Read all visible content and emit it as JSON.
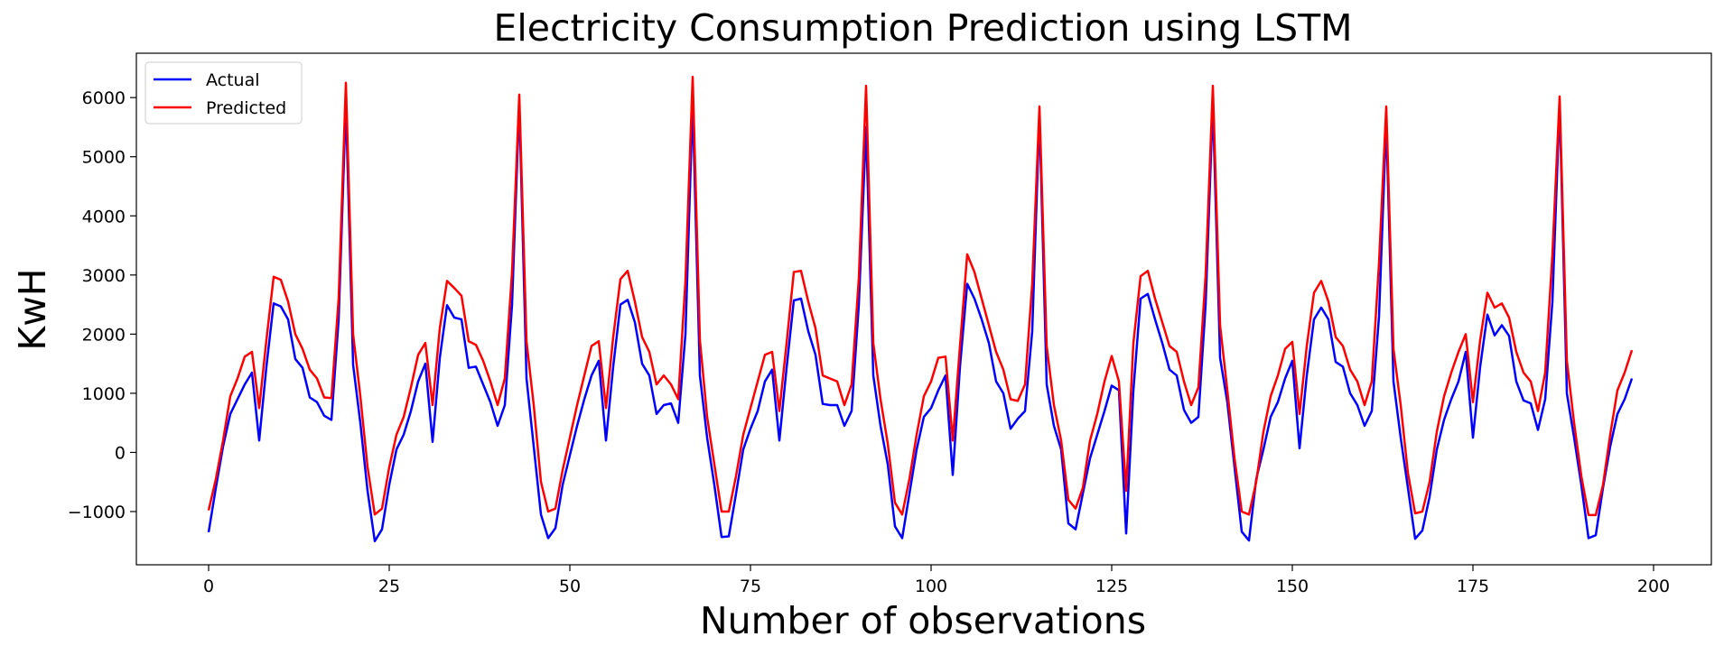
{
  "chart_data": {
    "type": "line",
    "title": "Electricity Consumption Prediction using LSTM",
    "xlabel": "Number of observations",
    "ylabel": "KwH",
    "xlim": [
      -10,
      208
    ],
    "ylim": [
      -1900,
      6750
    ],
    "xticks": [
      0,
      25,
      50,
      75,
      100,
      125,
      150,
      175,
      200
    ],
    "xtick_labels": [
      "0",
      "25",
      "50",
      "75",
      "100",
      "125",
      "150",
      "175",
      "200"
    ],
    "yticks": [
      -1000,
      0,
      1000,
      2000,
      3000,
      4000,
      5000,
      6000
    ],
    "ytick_labels": [
      "−1000",
      "0",
      "1000",
      "2000",
      "3000",
      "4000",
      "5000",
      "6000"
    ],
    "legend_position": "top-left",
    "grid": false,
    "series": [
      {
        "name": "Actual",
        "color": "#0000ff",
        "values": [
          -1350,
          -600,
          100,
          650,
          900,
          1150,
          1350,
          200,
          1450,
          2520,
          2470,
          2250,
          1580,
          1430,
          930,
          850,
          620,
          550,
          2250,
          5900,
          1480,
          500,
          -650,
          -1500,
          -1300,
          -550,
          50,
          300,
          700,
          1200,
          1500,
          180,
          1600,
          2490,
          2280,
          2250,
          1430,
          1450,
          1150,
          850,
          450,
          800,
          2500,
          5900,
          1250,
          100,
          -1050,
          -1450,
          -1280,
          -550,
          -50,
          450,
          900,
          1300,
          1550,
          200,
          1450,
          2500,
          2580,
          2200,
          1500,
          1300,
          650,
          800,
          830,
          500,
          2000,
          5900,
          1300,
          250,
          -550,
          -1430,
          -1420,
          -700,
          50,
          400,
          700,
          1200,
          1400,
          200,
          1430,
          2570,
          2600,
          2050,
          1650,
          820,
          800,
          800,
          450,
          700,
          2500,
          5500,
          1300,
          450,
          -200,
          -1250,
          -1450,
          -700,
          50,
          600,
          750,
          1050,
          1300,
          -380,
          1450,
          2850,
          2600,
          2250,
          1850,
          1200,
          1000,
          400,
          570,
          700,
          2050,
          5700,
          1150,
          450,
          50,
          -1200,
          -1300,
          -700,
          -100,
          300,
          700,
          1130,
          1050,
          -1370,
          1050,
          2600,
          2680,
          2250,
          1850,
          1400,
          1300,
          720,
          500,
          600,
          2500,
          5900,
          1600,
          850,
          -250,
          -1340,
          -1490,
          -450,
          50,
          600,
          850,
          1250,
          1550,
          70,
          1300,
          2250,
          2450,
          2250,
          1530,
          1450,
          1000,
          800,
          450,
          700,
          2300,
          5600,
          1200,
          250,
          -600,
          -1460,
          -1320,
          -750,
          50,
          550,
          900,
          1200,
          1700,
          250,
          1450,
          2330,
          1980,
          2150,
          1970,
          1200,
          880,
          830,
          380,
          900,
          2550,
          5900,
          1000,
          250,
          -550,
          -1450,
          -1400,
          -600,
          100,
          650,
          900,
          1250
        ]
      },
      {
        "name": "Predicted",
        "color": "#ff0000",
        "values": [
          -980,
          -450,
          200,
          950,
          1250,
          1620,
          1700,
          750,
          1900,
          2970,
          2920,
          2550,
          2000,
          1750,
          1400,
          1250,
          930,
          920,
          2600,
          6250,
          2000,
          950,
          -250,
          -1050,
          -950,
          -250,
          300,
          600,
          1100,
          1650,
          1850,
          800,
          2100,
          2900,
          2780,
          2650,
          1880,
          1820,
          1550,
          1200,
          800,
          1250,
          3050,
          6050,
          1880,
          800,
          -500,
          -1000,
          -950,
          -300,
          250,
          800,
          1300,
          1800,
          1880,
          750,
          1950,
          2930,
          3070,
          2550,
          1950,
          1700,
          1150,
          1300,
          1150,
          900,
          2900,
          6350,
          1900,
          600,
          -200,
          -1000,
          -1000,
          -400,
          300,
          750,
          1200,
          1650,
          1700,
          700,
          1850,
          3050,
          3070,
          2550,
          2100,
          1300,
          1250,
          1200,
          800,
          1150,
          2950,
          6200,
          1850,
          900,
          150,
          -850,
          -1050,
          -450,
          300,
          950,
          1200,
          1600,
          1620,
          200,
          1800,
          3350,
          3050,
          2600,
          2150,
          1700,
          1400,
          900,
          870,
          1150,
          2850,
          5850,
          1800,
          800,
          200,
          -800,
          -950,
          -600,
          200,
          650,
          1200,
          1630,
          1200,
          -650,
          1850,
          2980,
          3070,
          2600,
          2200,
          1800,
          1700,
          1200,
          800,
          1100,
          3000,
          6200,
          2150,
          1050,
          -100,
          -1000,
          -1050,
          -500,
          350,
          950,
          1300,
          1750,
          1870,
          650,
          1800,
          2700,
          2900,
          2550,
          1950,
          1800,
          1400,
          1200,
          800,
          1200,
          3200,
          5850,
          1750,
          800,
          -350,
          -1030,
          -1000,
          -500,
          350,
          950,
          1350,
          1700,
          2000,
          850,
          1900,
          2700,
          2450,
          2520,
          2280,
          1700,
          1350,
          1200,
          700,
          1350,
          3350,
          6020,
          1550,
          500,
          -400,
          -1060,
          -1060,
          -550,
          300,
          1050,
          1350,
          1730
        ]
      }
    ]
  }
}
